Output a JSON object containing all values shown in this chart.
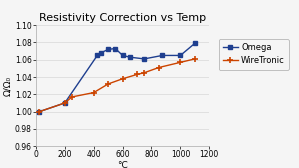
{
  "title": "Resistivity Correction vs Temp",
  "xlabel": "°C",
  "ylabel": "Ω/Ω₀",
  "xlim": [
    0,
    1200
  ],
  "ylim": [
    0.96,
    1.1
  ],
  "yticks": [
    0.96,
    0.98,
    1.0,
    1.02,
    1.04,
    1.06,
    1.08,
    1.1
  ],
  "xticks": [
    0,
    200,
    400,
    600,
    800,
    1000,
    1200
  ],
  "omega_x": [
    25,
    200,
    425,
    450,
    500,
    550,
    600,
    650,
    750,
    875,
    1000,
    1100
  ],
  "omega_y": [
    1.0,
    1.01,
    1.065,
    1.068,
    1.072,
    1.073,
    1.065,
    1.063,
    1.061,
    1.065,
    1.065,
    1.079
  ],
  "wiretronic_x": [
    25,
    200,
    250,
    400,
    500,
    600,
    700,
    750,
    850,
    1000,
    1100
  ],
  "wiretronic_y": [
    1.0,
    1.01,
    1.017,
    1.022,
    1.032,
    1.038,
    1.043,
    1.045,
    1.051,
    1.057,
    1.061
  ],
  "omega_color": "#1f3f8f",
  "wiretronic_color": "#cc4400",
  "background_color": "#f5f5f5",
  "plot_bg_color": "#f5f5f5",
  "grid_color": "#d8d8d8",
  "title_fontsize": 8,
  "label_fontsize": 6.5,
  "tick_fontsize": 5.5,
  "legend_fontsize": 6
}
